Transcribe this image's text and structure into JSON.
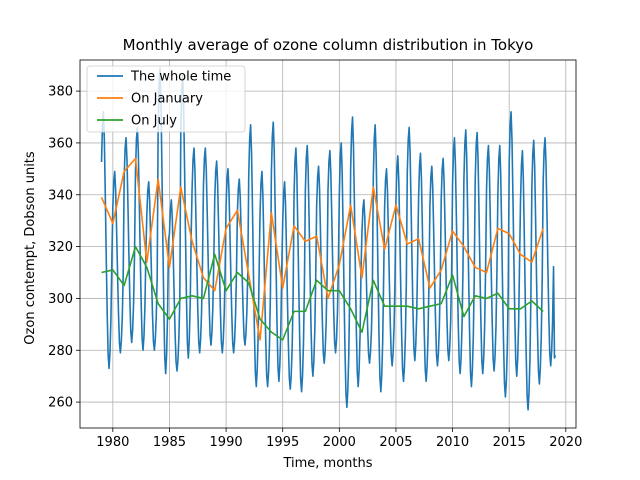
{
  "chart_data": {
    "type": "line",
    "title": "Monthly average of ozone column distribution in Tokyo",
    "xlabel": "Time, months",
    "ylabel": "Ozon contempt, Dobson units",
    "xlim": [
      1977.1,
      2020.9
    ],
    "ylim": [
      250,
      392
    ],
    "xticks": [
      1980,
      1985,
      1990,
      1995,
      2000,
      2005,
      2010,
      2015,
      2020
    ],
    "yticks": [
      260,
      280,
      300,
      320,
      340,
      360,
      380
    ],
    "grid": true,
    "legend_position": "top-left",
    "monthly_profile": [
      352,
      365,
      370,
      360,
      340,
      318,
      298,
      283,
      278,
      284,
      296,
      318
    ],
    "series": [
      {
        "name": "The whole time",
        "color": "#1f77b4",
        "start_year": 1979,
        "end_year": 2019.08,
        "annual_amplitude": {
          "x": [
            1979,
            1980,
            1981,
            1982,
            1983,
            1984,
            1985,
            1986,
            1987,
            1988,
            1989,
            1990,
            1991,
            1992,
            1993,
            1994,
            1995,
            1996,
            1997,
            1998,
            1999,
            2000,
            2001,
            2002,
            2003,
            2004,
            2005,
            2006,
            2007,
            2008,
            2009,
            2010,
            2011,
            2012,
            2013,
            2014,
            2015,
            2016,
            2017,
            2018
          ],
          "max": [
            372,
            349,
            362,
            366,
            345,
            389,
            338,
            386,
            358,
            358,
            353,
            350,
            346,
            367,
            349,
            368,
            345,
            358,
            359,
            351,
            357,
            360,
            370,
            338,
            367,
            350,
            355,
            366,
            356,
            351,
            354,
            362,
            365,
            364,
            359,
            359,
            372,
            357,
            361,
            362
          ],
          "min": [
            273,
            279,
            283,
            280,
            280,
            271,
            272,
            277,
            279,
            282,
            279,
            279,
            282,
            266,
            266,
            268,
            265,
            264,
            270,
            275,
            279,
            258,
            266,
            275,
            264,
            274,
            268,
            276,
            268,
            274,
            276,
            271,
            266,
            271,
            272,
            262,
            270,
            257,
            267,
            274
          ]
        }
      },
      {
        "name": "On January",
        "color": "#ff7f0e",
        "x": [
          1979,
          1980,
          1981,
          1982,
          1983,
          1984,
          1985,
          1986,
          1987,
          1988,
          1989,
          1990,
          1991,
          1992,
          1993,
          1994,
          1995,
          1996,
          1997,
          1998,
          1999,
          2000,
          2001,
          2002,
          2003,
          2004,
          2005,
          2006,
          2007,
          2008,
          2009,
          2010,
          2011,
          2012,
          2013,
          2014,
          2015,
          2016,
          2017,
          2018
        ],
        "values": [
          339,
          329,
          349,
          354,
          314,
          346,
          312,
          343,
          322,
          308,
          303,
          327,
          334,
          309,
          284,
          333,
          304,
          328,
          322,
          324,
          300,
          313,
          336,
          308,
          343,
          319,
          336,
          321,
          323,
          304,
          311,
          326,
          320,
          312,
          310,
          327,
          325,
          317,
          314,
          327
        ]
      },
      {
        "name": "On July",
        "color": "#2ca02c",
        "x": [
          1979,
          1980,
          1981,
          1982,
          1983,
          1984,
          1985,
          1986,
          1987,
          1988,
          1989,
          1990,
          1991,
          1992,
          1993,
          1994,
          1995,
          1996,
          1997,
          1998,
          1999,
          2000,
          2001,
          2002,
          2003,
          2004,
          2005,
          2006,
          2007,
          2008,
          2009,
          2010,
          2011,
          2012,
          2013,
          2014,
          2015,
          2016,
          2017,
          2018
        ],
        "values": [
          310,
          311,
          305,
          320,
          312,
          298,
          292,
          300,
          301,
          300,
          317,
          303,
          310,
          306,
          292,
          287,
          284,
          295,
          295,
          307,
          303,
          303,
          296,
          287,
          307,
          297,
          297,
          297,
          296,
          297,
          298,
          309,
          293,
          301,
          300,
          302,
          296,
          296,
          299,
          295
        ]
      }
    ]
  }
}
